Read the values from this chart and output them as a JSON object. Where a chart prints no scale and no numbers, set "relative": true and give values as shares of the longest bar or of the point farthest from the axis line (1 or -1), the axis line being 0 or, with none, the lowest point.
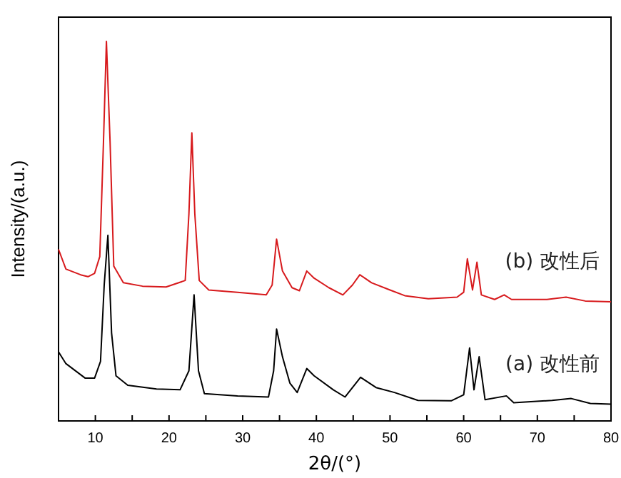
{
  "chart_data": {
    "type": "line",
    "relative": true,
    "xlabel": "2θ/(°)",
    "ylabel": "Intensity/(a.u.)",
    "xlim": [
      5,
      80
    ],
    "xticks": [
      10,
      {
        "value": 15,
        "label": null
      },
      20,
      {
        "value": 25,
        "label": null
      },
      30,
      {
        "value": 35,
        "label": null
      },
      40,
      {
        "value": 45,
        "label": null
      },
      50,
      {
        "value": 55,
        "label": null
      },
      60,
      {
        "value": 65,
        "label": null
      },
      70,
      {
        "value": 75,
        "label": null
      },
      80
    ],
    "grid": false,
    "legend": false,
    "marker": "none",
    "line_style": "solid",
    "series": [
      {
        "name": "(b) 改性后",
        "color": "#d7191c",
        "x": [
          5,
          6,
          8,
          9,
          9.9,
          10.6,
          11.1,
          11.5,
          12,
          12.5,
          13.8,
          16.4,
          19.6,
          22.2,
          22.7,
          23.1,
          23.5,
          24.1,
          25.4,
          29.3,
          33.2,
          34,
          34.6,
          35.4,
          36.7,
          37.7,
          38.7,
          39.7,
          41.7,
          43.6,
          44.9,
          45.9,
          47.5,
          50,
          52,
          55.2,
          59.1,
          60,
          60.5,
          61.2,
          61.8,
          62.4,
          64.2,
          65.5,
          66.5,
          71.3,
          73.9,
          76.5,
          80
        ],
        "values": [
          0.452,
          0.4,
          0.385,
          0.38,
          0.389,
          0.433,
          0.734,
          1,
          0.734,
          0.408,
          0.364,
          0.355,
          0.353,
          0.37,
          0.546,
          0.759,
          0.546,
          0.37,
          0.345,
          0.339,
          0.332,
          0.358,
          0.479,
          0.395,
          0.351,
          0.343,
          0.395,
          0.376,
          0.351,
          0.332,
          0.358,
          0.385,
          0.364,
          0.345,
          0.33,
          0.322,
          0.326,
          0.339,
          0.427,
          0.345,
          0.418,
          0.332,
          0.32,
          0.332,
          0.32,
          0.32,
          0.326,
          0.316,
          0.314
        ]
      },
      {
        "name": "(a) 改性前",
        "color": "#000000",
        "x": [
          5,
          6,
          8.6,
          9.9,
          10.7,
          11.2,
          11.7,
          12.2,
          12.8,
          14.4,
          18.3,
          21.5,
          22.7,
          23.4,
          24,
          24.8,
          29.3,
          33.5,
          34.2,
          34.6,
          35.4,
          36.4,
          37.4,
          38.7,
          39.7,
          42.3,
          43.9,
          46,
          48.1,
          50.6,
          53.8,
          58.3,
          60,
          60.8,
          61.4,
          62.1,
          62.9,
          65.8,
          66.8,
          72,
          74.6,
          77.2,
          80
        ],
        "values": [
          0.182,
          0.151,
          0.113,
          0.113,
          0.157,
          0.358,
          0.489,
          0.232,
          0.119,
          0.094,
          0.084,
          0.082,
          0.132,
          0.332,
          0.132,
          0.072,
          0.066,
          0.063,
          0.132,
          0.242,
          0.169,
          0.1,
          0.075,
          0.138,
          0.119,
          0.082,
          0.063,
          0.115,
          0.088,
          0.075,
          0.054,
          0.053,
          0.069,
          0.192,
          0.082,
          0.169,
          0.056,
          0.066,
          0.048,
          0.054,
          0.059,
          0.046,
          0.044
        ]
      }
    ]
  }
}
